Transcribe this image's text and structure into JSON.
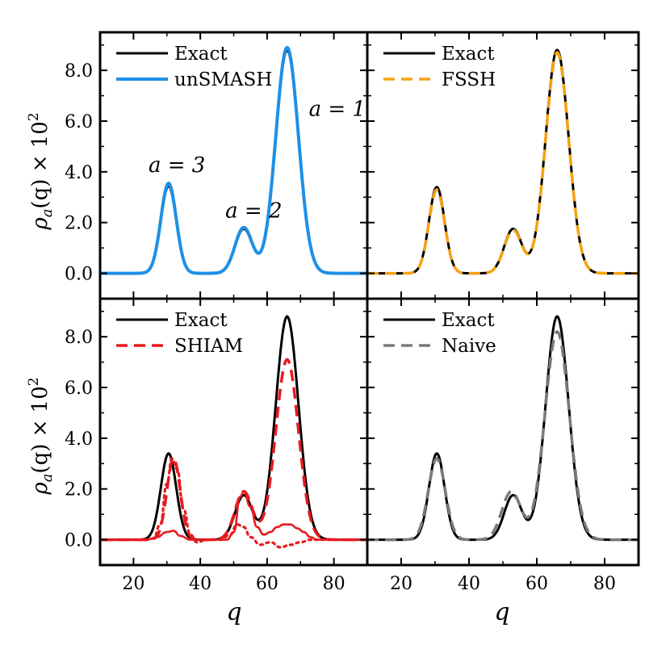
{
  "figure": {
    "ylabel_main": "ρ",
    "ylabel_sub": "a",
    "ylabel_rest": "(q) × 10",
    "ylabel_sup": "2",
    "xlabel": "q",
    "x_ticks": [
      "20",
      "40",
      "60",
      "80"
    ],
    "y_ticks": [
      "0.0",
      "2.0",
      "4.0",
      "6.0",
      "8.0"
    ]
  },
  "chart_data": [
    {
      "type": "line",
      "panel": "top-left",
      "xlim": [
        10,
        90
      ],
      "ylim": [
        -1.0,
        9.5
      ],
      "grid": false,
      "legend_position": "top-left",
      "series": [
        {
          "name": "Exact",
          "style": "solid",
          "color": "#000000",
          "peaks": [
            {
              "center": 66.0,
              "height": 8.8,
              "width": 3.4
            },
            {
              "center": 53.0,
              "height": 1.75,
              "width": 2.6
            },
            {
              "center": 30.5,
              "height": 3.45,
              "width": 2.3
            }
          ]
        },
        {
          "name": "unSMASH",
          "style": "solid-light",
          "color": "#1e90e6",
          "peaks": [
            {
              "center": 66.0,
              "height": 8.9,
              "width": 3.4
            },
            {
              "center": 53.0,
              "height": 1.8,
              "width": 2.6
            },
            {
              "center": 30.5,
              "height": 3.55,
              "width": 2.3
            }
          ]
        }
      ],
      "annotations": [
        {
          "text": "a = 1",
          "x": 72.5,
          "y": 6.2
        },
        {
          "text": "a = 2",
          "x": 47.5,
          "y": 2.2
        },
        {
          "text": "a = 3",
          "x": 24.5,
          "y": 4.0
        }
      ]
    },
    {
      "type": "line",
      "panel": "top-right",
      "xlim": [
        10,
        90
      ],
      "ylim": [
        -1.0,
        9.5
      ],
      "grid": false,
      "legend_position": "top-left",
      "series": [
        {
          "name": "Exact",
          "style": "solid",
          "color": "#000000",
          "peaks": [
            {
              "center": 66.0,
              "height": 8.8,
              "width": 3.4
            },
            {
              "center": 53.0,
              "height": 1.75,
              "width": 2.6
            },
            {
              "center": 30.5,
              "height": 3.4,
              "width": 2.3
            }
          ]
        },
        {
          "name": "FSSH",
          "style": "dashed",
          "color": "#f5a311",
          "peaks": [
            {
              "center": 66.0,
              "height": 8.7,
              "width": 3.4
            },
            {
              "center": 53.0,
              "height": 1.7,
              "width": 2.6
            },
            {
              "center": 30.5,
              "height": 3.3,
              "width": 2.3
            }
          ]
        }
      ],
      "annotations": []
    },
    {
      "type": "line",
      "panel": "bottom-left",
      "xlim": [
        10,
        90
      ],
      "ylim": [
        -1.0,
        9.5
      ],
      "grid": false,
      "legend_position": "top-left",
      "series": [
        {
          "name": "Exact",
          "style": "solid",
          "color": "#000000",
          "peaks": [
            {
              "center": 66.0,
              "height": 8.8,
              "width": 3.4
            },
            {
              "center": 53.0,
              "height": 1.75,
              "width": 2.6
            },
            {
              "center": 30.5,
              "height": 3.4,
              "width": 2.3
            }
          ]
        },
        {
          "name": "SHIAM",
          "style": "dashed",
          "color": "#e8191f",
          "peaks": [
            {
              "center": 66.0,
              "height": 7.1,
              "width": 3.4
            },
            {
              "center": 53.0,
              "height": 1.9,
              "width": 2.6
            },
            {
              "center": 32.0,
              "height": 3.2,
              "width": 2.0
            }
          ]
        },
        {
          "name": "",
          "style": "solid-thin",
          "color": "#e8191f",
          "points": [
            [
              10,
              0
            ],
            [
              24,
              0
            ],
            [
              27,
              0.1
            ],
            [
              30,
              0.3
            ],
            [
              32,
              0.35
            ],
            [
              34,
              0.15
            ],
            [
              37,
              0
            ],
            [
              48,
              0
            ],
            [
              50,
              0.3
            ],
            [
              52,
              1.7
            ],
            [
              53,
              1.9
            ],
            [
              55,
              1.3
            ],
            [
              57,
              0.5
            ],
            [
              59,
              0.2
            ],
            [
              61,
              0.3
            ],
            [
              63,
              0.5
            ],
            [
              65,
              0.6
            ],
            [
              67,
              0.6
            ],
            [
              69,
              0.45
            ],
            [
              71,
              0.3
            ],
            [
              73,
              0.1
            ],
            [
              75,
              0
            ],
            [
              90,
              0
            ]
          ]
        },
        {
          "name": "",
          "style": "dotted",
          "color": "#e8191f",
          "points": [
            [
              10,
              0
            ],
            [
              24,
              0
            ],
            [
              26,
              0.05
            ],
            [
              28,
              0.6
            ],
            [
              30,
              2.2
            ],
            [
              31.5,
              3.2
            ],
            [
              33,
              2.8
            ],
            [
              35,
              1.2
            ],
            [
              37,
              0.2
            ],
            [
              39,
              -0.1
            ],
            [
              42,
              0
            ],
            [
              46,
              0
            ],
            [
              49,
              0.2
            ],
            [
              51,
              0.6
            ],
            [
              53,
              0.5
            ],
            [
              55,
              0.1
            ],
            [
              58,
              -0.2
            ],
            [
              61,
              -0.1
            ],
            [
              64,
              -0.3
            ],
            [
              67,
              -0.2
            ],
            [
              70,
              -0.1
            ],
            [
              73,
              0
            ],
            [
              90,
              0
            ]
          ]
        }
      ],
      "annotations": []
    },
    {
      "type": "line",
      "panel": "bottom-right",
      "xlim": [
        10,
        90
      ],
      "ylim": [
        -1.0,
        9.5
      ],
      "grid": false,
      "legend_position": "top-left",
      "series": [
        {
          "name": "Exact",
          "style": "solid",
          "color": "#000000",
          "peaks": [
            {
              "center": 66.0,
              "height": 8.8,
              "width": 3.4
            },
            {
              "center": 53.0,
              "height": 1.75,
              "width": 2.6
            },
            {
              "center": 30.5,
              "height": 3.4,
              "width": 2.3
            }
          ]
        },
        {
          "name": "Naive",
          "style": "dashed",
          "color": "#7a7a7a",
          "peaks": [
            {
              "center": 66.0,
              "height": 8.2,
              "width": 3.6
            },
            {
              "center": 52.5,
              "height": 1.9,
              "width": 2.8
            },
            {
              "center": 30.5,
              "height": 3.2,
              "width": 2.5
            }
          ]
        }
      ],
      "annotations": []
    }
  ]
}
